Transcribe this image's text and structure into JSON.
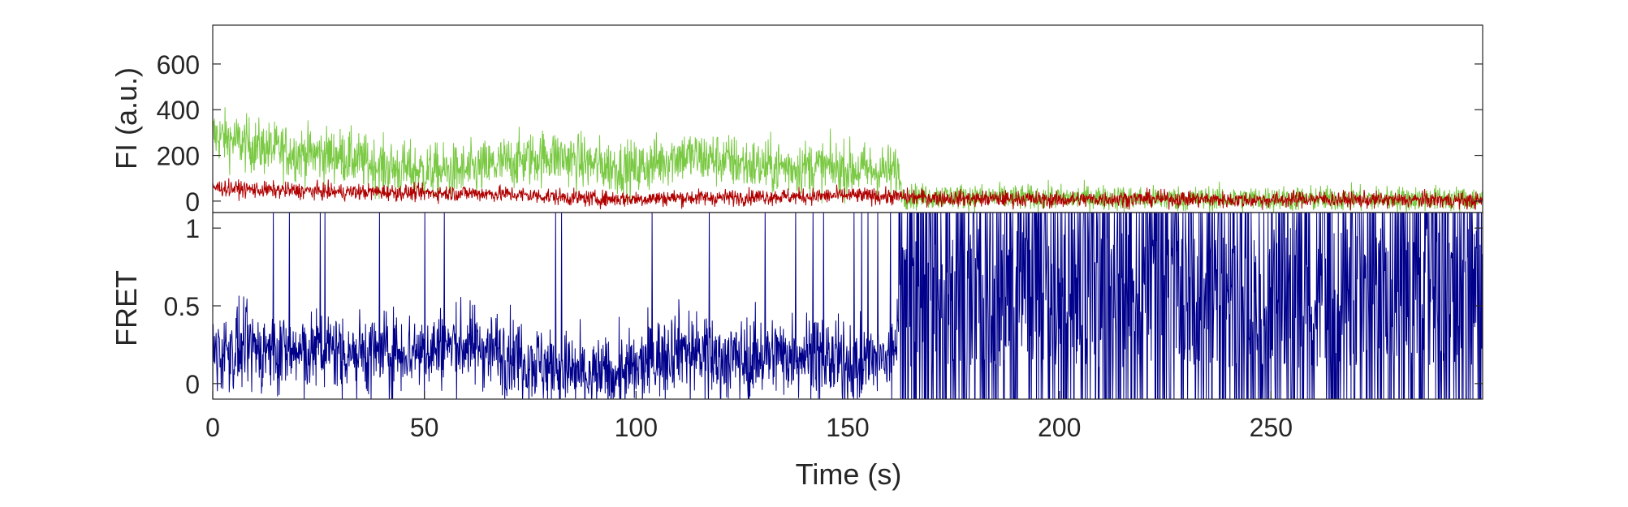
{
  "colors": {
    "donor": "#7ac943",
    "acceptor": "#b00000",
    "fret": "#00008b",
    "axis": "#262626",
    "background": "#ffffff"
  },
  "chart_data": [
    {
      "type": "line",
      "panel": "top",
      "xlabel": "",
      "ylabel": "FI (a.u.)",
      "xlim": [
        0,
        300
      ],
      "ylim": [
        -50,
        770
      ],
      "yticks": [
        0,
        200,
        400,
        600
      ],
      "ytick_labels": [
        "0",
        "200",
        "400",
        "600"
      ],
      "grid": false,
      "legend": "none",
      "series": [
        {
          "color": "#7ac943",
          "x": [
            0,
            10,
            20,
            30,
            40,
            50,
            60,
            70,
            80,
            90,
            100,
            110,
            120,
            130,
            140,
            150,
            160,
            162,
            163,
            170,
            180,
            190,
            200,
            210,
            220,
            230,
            240,
            250,
            260,
            270,
            280,
            290,
            300
          ],
          "values": [
            290,
            240,
            210,
            200,
            150,
            130,
            130,
            170,
            200,
            160,
            140,
            200,
            180,
            150,
            150,
            140,
            130,
            130,
            20,
            20,
            20,
            15,
            15,
            15,
            10,
            10,
            10,
            10,
            10,
            10,
            10,
            10,
            10
          ]
        },
        {
          "color": "#b00000",
          "x": [
            0,
            10,
            20,
            30,
            40,
            50,
            60,
            70,
            80,
            90,
            100,
            110,
            120,
            130,
            140,
            150,
            160,
            170,
            180,
            190,
            200,
            210,
            220,
            230,
            240,
            250,
            260,
            270,
            280,
            290,
            300
          ],
          "values": [
            60,
            50,
            45,
            40,
            40,
            35,
            35,
            30,
            20,
            10,
            10,
            15,
            15,
            20,
            20,
            25,
            20,
            15,
            10,
            10,
            5,
            10,
            10,
            10,
            5,
            5,
            10,
            5,
            5,
            5,
            0
          ]
        }
      ]
    },
    {
      "type": "line",
      "panel": "bottom",
      "xlabel": "Time (s)",
      "ylabel": "FRET",
      "xlim": [
        0,
        300
      ],
      "ylim": [
        -0.1,
        1.1
      ],
      "xticks": [
        0,
        50,
        100,
        150,
        200,
        250
      ],
      "xtick_labels": [
        "0",
        "50",
        "100",
        "150",
        "200",
        "250"
      ],
      "yticks": [
        0,
        0.5,
        1
      ],
      "ytick_labels": [
        "0",
        "0.5",
        "1"
      ],
      "grid": false,
      "legend": "none",
      "series": [
        {
          "color": "#00008b",
          "x": [
            0,
            10,
            20,
            30,
            40,
            50,
            60,
            70,
            80,
            90,
            100,
            110,
            120,
            130,
            140,
            150,
            160,
            163,
            170,
            180,
            190,
            200,
            210,
            220,
            230,
            240,
            250,
            260,
            270,
            280,
            290,
            300
          ],
          "values": [
            0.2,
            0.22,
            0.2,
            0.22,
            0.2,
            0.22,
            0.25,
            0.2,
            0.1,
            0.05,
            0.08,
            0.25,
            0.15,
            0.18,
            0.2,
            0.12,
            0.15,
            0.5,
            0.5,
            0.5,
            0.5,
            0.5,
            0.5,
            0.5,
            0.5,
            0.5,
            0.5,
            0.5,
            0.5,
            0.5,
            0.5,
            0.5
          ]
        }
      ]
    }
  ]
}
